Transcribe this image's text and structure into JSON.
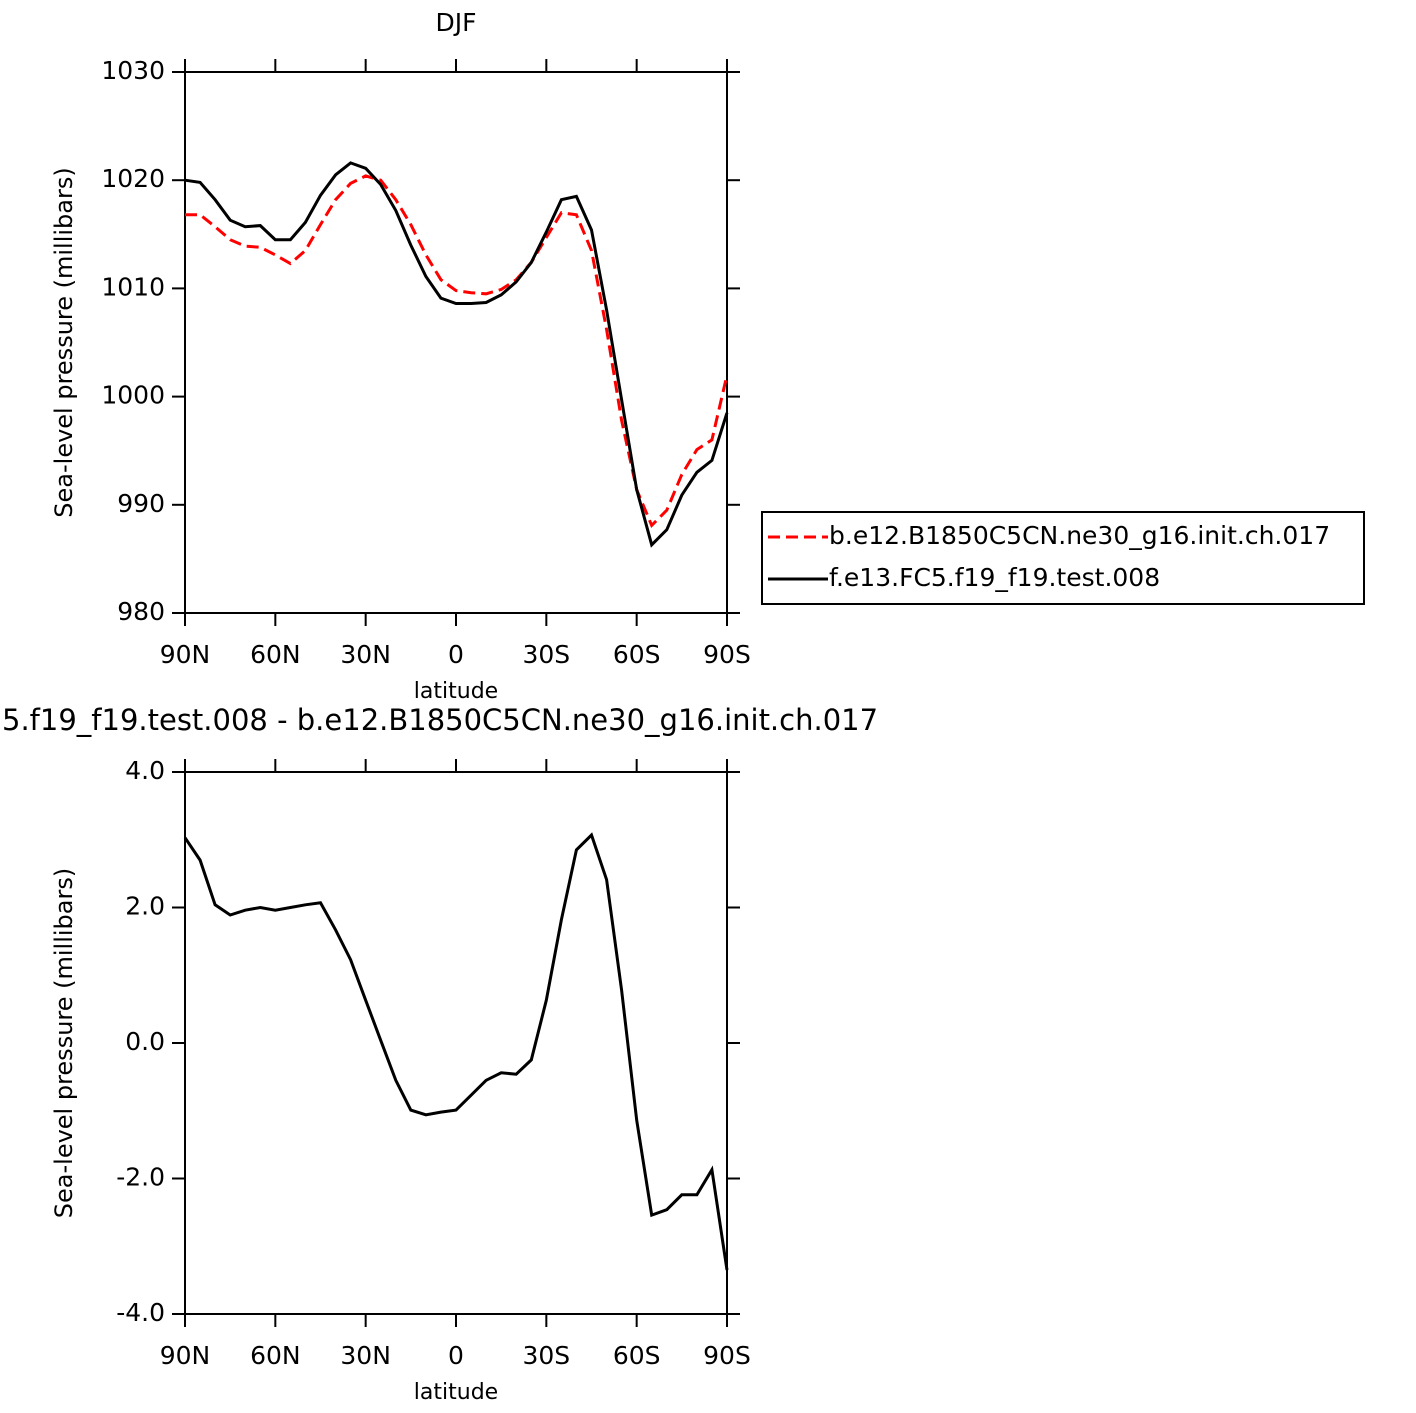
{
  "chart_data": [
    {
      "type": "line",
      "title": "DJF",
      "xlabel": "latitude",
      "ylabel": "Sea-level pressure (millibars)",
      "x": [
        90,
        85,
        80,
        75,
        70,
        65,
        60,
        55,
        50,
        45,
        40,
        35,
        30,
        25,
        20,
        15,
        10,
        5,
        0,
        -5,
        -10,
        -15,
        -20,
        -25,
        -30,
        -35,
        -40,
        -45,
        -50,
        -55,
        -60,
        -65,
        -70,
        -75,
        -80,
        -85,
        -90
      ],
      "series": [
        {
          "name": "b.e12.B1850C5CN.ne30_g16.init.ch.017",
          "color": "#ff0000",
          "dash": true,
          "values": [
            1016.8,
            1016.8,
            1015.7,
            1014.5,
            1013.9,
            1013.8,
            1013.1,
            1012.3,
            1013.5,
            1015.9,
            1018.2,
            1019.7,
            1020.4,
            1020.0,
            1018.2,
            1015.9,
            1013.1,
            1010.8,
            1009.8,
            1009.6,
            1009.5,
            1009.9,
            1010.8,
            1012.4,
            1014.7,
            1017.0,
            1016.8,
            1013.5,
            1006.2,
            997.8,
            991.4,
            988.1,
            989.5,
            992.8,
            995.1,
            996.0,
            1002.0
          ]
        },
        {
          "name": "f.e13.FC5.f19_f19.test.008",
          "color": "#000000",
          "dash": false,
          "values": [
            1020.0,
            1019.8,
            1018.2,
            1016.3,
            1015.7,
            1015.8,
            1014.5,
            1014.5,
            1016.1,
            1018.6,
            1020.5,
            1021.6,
            1021.1,
            1019.6,
            1017.2,
            1014.0,
            1011.1,
            1009.1,
            1008.6,
            1008.6,
            1008.7,
            1009.4,
            1010.6,
            1012.4,
            1015.2,
            1018.2,
            1018.5,
            1015.4,
            1008.0,
            999.7,
            991.4,
            986.3,
            987.7,
            990.9,
            993.0,
            994.1,
            998.5
          ]
        }
      ],
      "xlim": [
        90,
        -90
      ],
      "xticks": [
        {
          "value": 90,
          "label": "90N"
        },
        {
          "value": 60,
          "label": "60N"
        },
        {
          "value": 30,
          "label": "30N"
        },
        0,
        {
          "value": -30,
          "label": "30S"
        },
        {
          "value": -60,
          "label": "60S"
        },
        {
          "value": -90,
          "label": "90S"
        }
      ],
      "ylim": [
        980,
        1030
      ],
      "yticks": [
        980,
        990,
        1000,
        1010,
        1020,
        1030
      ],
      "legend": "outside-right"
    },
    {
      "type": "line",
      "title": "5.f19_f19.test.008 - b.e12.B1850C5CN.ne30_g16.init.ch.017",
      "xlabel": "latitude",
      "ylabel": "Sea-level pressure (millibars)",
      "x": [
        90,
        85,
        80,
        75,
        70,
        65,
        60,
        55,
        50,
        45,
        40,
        35,
        30,
        25,
        20,
        15,
        10,
        5,
        0,
        -5,
        -10,
        -15,
        -20,
        -25,
        -30,
        -35,
        -40,
        -45,
        -50,
        -55,
        -60,
        -65,
        -70,
        -75,
        -80,
        -85,
        -90
      ],
      "series": [
        {
          "color": "#000000",
          "dash": false,
          "values": [
            3.03,
            2.7,
            2.04,
            1.89,
            1.96,
            2.0,
            1.96,
            2.0,
            2.04,
            2.07,
            1.67,
            1.23,
            0.63,
            0.04,
            -0.55,
            -0.99,
            -1.06,
            -1.02,
            -0.99,
            -0.77,
            -0.55,
            -0.44,
            -0.46,
            -0.25,
            0.63,
            1.82,
            2.85,
            3.07,
            2.41,
            0.78,
            -1.14,
            -2.54,
            -2.46,
            -2.24,
            -2.24,
            -1.87,
            -3.35
          ]
        }
      ],
      "xlim": [
        90,
        -90
      ],
      "xticks": [
        {
          "value": 90,
          "label": "90N"
        },
        {
          "value": 60,
          "label": "60N"
        },
        {
          "value": 30,
          "label": "30N"
        },
        0,
        {
          "value": -30,
          "label": "30S"
        },
        {
          "value": -60,
          "label": "60S"
        },
        {
          "value": -90,
          "label": "90S"
        }
      ],
      "ylim": [
        -4,
        4
      ],
      "yticks": [
        {
          "value": -4,
          "label": "-4.0"
        },
        {
          "value": -2,
          "label": "-2.0"
        },
        {
          "value": 0,
          "label": "0.0"
        },
        {
          "value": 2,
          "label": "2.0"
        },
        {
          "value": 4,
          "label": "4.0"
        }
      ]
    }
  ]
}
